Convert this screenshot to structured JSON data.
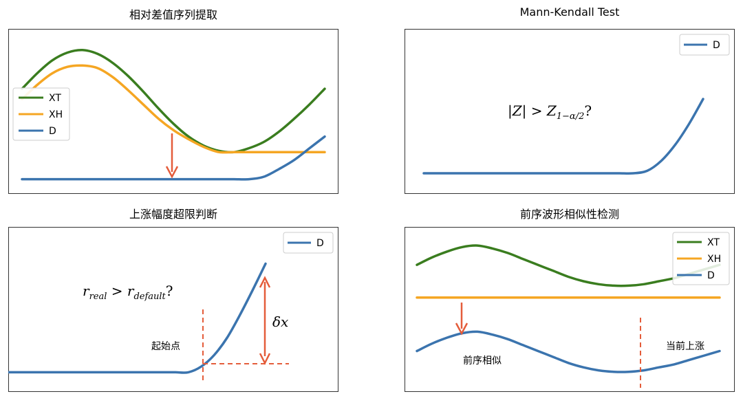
{
  "colors": {
    "XT": "#3a7d1f",
    "XH": "#f5a623",
    "D": "#3b74ae",
    "marker": "#e45c3a",
    "frame": "#333333"
  },
  "panels": [
    {
      "title": "相对差值序列提取",
      "legend": [
        "XT",
        "XH",
        "D"
      ],
      "annotations": [],
      "math": []
    },
    {
      "title": "Mann-Kendall Test",
      "legend": [
        "D"
      ],
      "annotations": [],
      "math": [
        "|Z| > Z",
        "1−α/2",
        "?"
      ]
    },
    {
      "title": "上涨幅度超限判断",
      "legend": [
        "D"
      ],
      "annotations": [
        "起始点"
      ],
      "math": [
        "r",
        "real",
        " > r",
        "default",
        "?",
        "δx"
      ]
    },
    {
      "title": "前序波形相似性检测",
      "legend": [
        "XT",
        "XH",
        "D"
      ],
      "annotations": [
        "前序相似",
        "当前上涨"
      ],
      "math": []
    }
  ],
  "chart_data": [
    {
      "type": "line",
      "title": "相对差值序列提取",
      "x": [
        0,
        1,
        2,
        3,
        4,
        5,
        6,
        7,
        8,
        9,
        10,
        11,
        12,
        13,
        14,
        15,
        16,
        17,
        18,
        19,
        20
      ],
      "series": [
        {
          "name": "XT",
          "values": [
            0.7,
            0.82,
            0.92,
            0.98,
            1.0,
            0.97,
            0.9,
            0.8,
            0.68,
            0.55,
            0.43,
            0.33,
            0.26,
            0.22,
            0.21,
            0.24,
            0.29,
            0.37,
            0.47,
            0.58,
            0.7
          ]
        },
        {
          "name": "XH",
          "values": [
            0.62,
            0.73,
            0.82,
            0.87,
            0.88,
            0.86,
            0.79,
            0.69,
            0.58,
            0.47,
            0.38,
            0.31,
            0.25,
            0.21,
            0.21,
            0.21,
            0.21,
            0.21,
            0.21,
            0.21,
            0.21
          ]
        },
        {
          "name": "D",
          "values": [
            0.0,
            0.0,
            0.0,
            0.0,
            0.0,
            0.0,
            0.0,
            0.0,
            0.0,
            0.0,
            0.0,
            0.0,
            0.0,
            0.0,
            0.0,
            0.0,
            0.02,
            0.08,
            0.15,
            0.24,
            0.33
          ]
        }
      ],
      "ylim": [
        -0.05,
        1.1
      ],
      "legend_position": "center-left"
    },
    {
      "type": "line",
      "title": "Mann-Kendall Test",
      "x": [
        0,
        1,
        2,
        3,
        4,
        5,
        6,
        7,
        8,
        9,
        10,
        11,
        12,
        13,
        14,
        15,
        16,
        17,
        18,
        19,
        20
      ],
      "series": [
        {
          "name": "D",
          "values": [
            0.0,
            0.0,
            0.0,
            0.0,
            0.0,
            0.0,
            0.0,
            0.0,
            0.0,
            0.0,
            0.0,
            0.0,
            0.0,
            0.0,
            0.0,
            0.0,
            0.02,
            0.1,
            0.23,
            0.4,
            0.6
          ]
        }
      ],
      "ylim": [
        -0.1,
        1.1
      ],
      "legend_position": "top-right"
    },
    {
      "type": "line",
      "title": "上涨幅度超限判断",
      "x": [
        0,
        1,
        2,
        3,
        4,
        5,
        6,
        7,
        8,
        9,
        10,
        11,
        12,
        13,
        14,
        15,
        16,
        17,
        18,
        19,
        20
      ],
      "series": [
        {
          "name": "D",
          "values": [
            0.0,
            0.0,
            0.0,
            0.0,
            0.0,
            0.0,
            0.0,
            0.0,
            0.0,
            0.0,
            0.0,
            0.0,
            0.0,
            0.0,
            0.0,
            0.05,
            0.15,
            0.3,
            0.5,
            0.72,
            0.95
          ]
        }
      ],
      "ylim": [
        -0.1,
        1.2
      ],
      "legend_position": "top-right"
    },
    {
      "type": "line",
      "title": "前序波形相似性检测",
      "x": [
        0,
        1,
        2,
        3,
        4,
        5,
        6,
        7,
        8,
        9,
        10,
        11,
        12,
        13,
        14,
        15,
        16,
        17,
        18,
        19,
        20
      ],
      "series": [
        {
          "name": "XT",
          "values": [
            0.8,
            0.85,
            0.89,
            0.92,
            0.93,
            0.91,
            0.88,
            0.84,
            0.8,
            0.76,
            0.72,
            0.69,
            0.67,
            0.66,
            0.66,
            0.67,
            0.69,
            0.71,
            0.74,
            0.77,
            0.8
          ]
        },
        {
          "name": "XH",
          "values": [
            0.58,
            0.58,
            0.58,
            0.58,
            0.58,
            0.58,
            0.58,
            0.58,
            0.58,
            0.58,
            0.58,
            0.58,
            0.58,
            0.58,
            0.58,
            0.58,
            0.58,
            0.58,
            0.58,
            0.58,
            0.58
          ]
        },
        {
          "name": "D",
          "values": [
            0.22,
            0.27,
            0.31,
            0.34,
            0.35,
            0.33,
            0.3,
            0.26,
            0.22,
            0.18,
            0.14,
            0.11,
            0.09,
            0.08,
            0.08,
            0.09,
            0.11,
            0.13,
            0.16,
            0.19,
            0.22
          ]
        }
      ],
      "ylim": [
        0.0,
        1.0
      ],
      "legend_position": "top-right"
    }
  ]
}
